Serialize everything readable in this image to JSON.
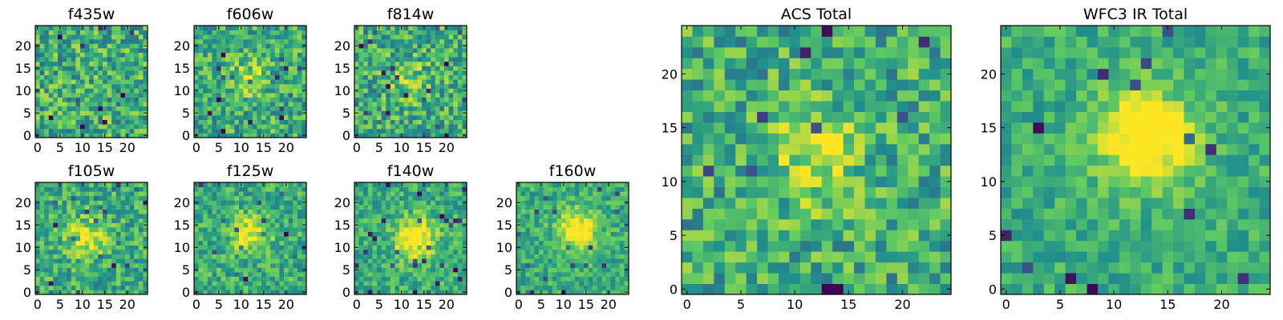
{
  "figure": {
    "colormap": "viridis",
    "colormap_stops": [
      "#440154",
      "#3b528b",
      "#21918c",
      "#5ec962",
      "#fde725"
    ]
  },
  "chart_data": [
    {
      "type": "heatmap",
      "title": "f435w",
      "grid_size": 25,
      "xticks": [
        "0",
        "5",
        "10",
        "15",
        "20"
      ],
      "yticks": [
        "0",
        "5",
        "10",
        "15",
        "20"
      ],
      "xlim": [
        -0.5,
        24.5
      ],
      "ylim": [
        -0.5,
        24.5
      ],
      "hotspot": null,
      "noise": 0.9,
      "seed": 11
    },
    {
      "type": "heatmap",
      "title": "f606w",
      "grid_size": 25,
      "xticks": [
        "0",
        "5",
        "10",
        "15",
        "20"
      ],
      "yticks": [
        "0",
        "5",
        "10",
        "15",
        "20"
      ],
      "xlim": [
        -0.5,
        24.5
      ],
      "ylim": [
        -0.5,
        24.5
      ],
      "hotspot": {
        "x": 11,
        "y": 13,
        "strength": 0.25
      },
      "noise": 0.8,
      "seed": 23
    },
    {
      "type": "heatmap",
      "title": "f814w",
      "grid_size": 25,
      "xticks": [
        "0",
        "5",
        "10",
        "15",
        "20"
      ],
      "yticks": [
        "0",
        "5",
        "10",
        "15",
        "20"
      ],
      "xlim": [
        -0.5,
        24.5
      ],
      "ylim": [
        -0.5,
        24.5
      ],
      "hotspot": {
        "x": 12,
        "y": 12,
        "strength": 0.2
      },
      "noise": 0.85,
      "seed": 37
    },
    {
      "type": "heatmap",
      "title": "f105w",
      "grid_size": 25,
      "xticks": [
        "0",
        "5",
        "10",
        "15",
        "20"
      ],
      "yticks": [
        "0",
        "5",
        "10",
        "15",
        "20"
      ],
      "xlim": [
        -0.5,
        24.5
      ],
      "ylim": [
        -0.5,
        24.5
      ],
      "hotspot": {
        "x": 11,
        "y": 12,
        "strength": 0.35
      },
      "noise": 0.7,
      "seed": 41
    },
    {
      "type": "heatmap",
      "title": "f125w",
      "grid_size": 25,
      "xticks": [
        "0",
        "5",
        "10",
        "15",
        "20"
      ],
      "yticks": [
        "0",
        "5",
        "10",
        "15",
        "20"
      ],
      "xlim": [
        -0.5,
        24.5
      ],
      "ylim": [
        -0.5,
        24.5
      ],
      "hotspot": {
        "x": 12,
        "y": 13,
        "strength": 0.35
      },
      "noise": 0.65,
      "seed": 53
    },
    {
      "type": "heatmap",
      "title": "f140w",
      "grid_size": 25,
      "xticks": [
        "0",
        "5",
        "10",
        "15",
        "20"
      ],
      "yticks": [
        "0",
        "5",
        "10",
        "15",
        "20"
      ],
      "xlim": [
        -0.5,
        24.5
      ],
      "ylim": [
        -0.5,
        24.5
      ],
      "hotspot": {
        "x": 13,
        "y": 12,
        "strength": 0.55
      },
      "noise": 0.6,
      "seed": 67
    },
    {
      "type": "heatmap",
      "title": "f160w",
      "grid_size": 25,
      "xticks": [
        "0",
        "5",
        "10",
        "15",
        "20"
      ],
      "yticks": [
        "0",
        "5",
        "10",
        "15",
        "20"
      ],
      "xlim": [
        -0.5,
        24.5
      ],
      "ylim": [
        -0.5,
        24.5
      ],
      "hotspot": {
        "x": 13,
        "y": 14,
        "strength": 0.5
      },
      "noise": 0.55,
      "seed": 79
    },
    {
      "type": "heatmap",
      "title": "ACS Total",
      "grid_size": 25,
      "xticks": [
        "0",
        "5",
        "10",
        "15",
        "20"
      ],
      "yticks": [
        "0",
        "5",
        "10",
        "15",
        "20"
      ],
      "xlim": [
        -0.5,
        24.5
      ],
      "ylim": [
        -0.5,
        24.5
      ],
      "hotspot": {
        "x": 12,
        "y": 12,
        "strength": 0.3
      },
      "noise": 0.8,
      "seed": 97
    },
    {
      "type": "heatmap",
      "title": "WFC3 IR Total",
      "grid_size": 25,
      "xticks": [
        "0",
        "5",
        "10",
        "15",
        "20"
      ],
      "yticks": [
        "0",
        "5",
        "10",
        "15",
        "20"
      ],
      "xlim": [
        -0.5,
        24.5
      ],
      "ylim": [
        -0.5,
        24.5
      ],
      "hotspot": {
        "x": 13,
        "y": 14,
        "strength": 0.6
      },
      "noise": 0.5,
      "seed": 113
    }
  ]
}
